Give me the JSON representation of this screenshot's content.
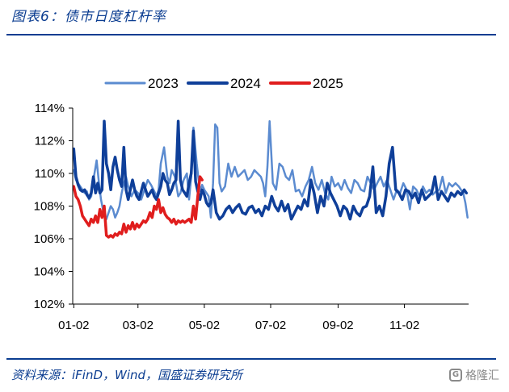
{
  "figure": {
    "title": "图表6：债市日度杠杆率",
    "source": "资料来源：iFinD，Wind，国盛证券研究所",
    "watermark": "格隆汇"
  },
  "chart_data": {
    "type": "line",
    "ylim": [
      102,
      114
    ],
    "xlim": [
      1,
      365
    ],
    "yticks": [
      "102%",
      "104%",
      "106%",
      "108%",
      "110%",
      "112%",
      "114%"
    ],
    "ytick_values": [
      102,
      104,
      106,
      108,
      110,
      112,
      114
    ],
    "xticks": [
      "01-02",
      "03-02",
      "05-02",
      "07-02",
      "09-02",
      "11-02"
    ],
    "xtick_values": [
      2,
      61,
      122,
      183,
      245,
      306
    ],
    "legend_position": "top",
    "grid": false,
    "series": [
      {
        "name": "2023",
        "color": "#5b8bd0",
        "width": 2.5,
        "x": [
          2,
          4,
          6,
          8,
          10,
          12,
          14,
          16,
          18,
          20,
          23,
          25,
          27,
          30,
          32,
          34,
          36,
          38,
          40,
          42,
          44,
          46,
          48,
          50,
          52,
          55,
          58,
          61,
          64,
          67,
          70,
          73,
          76,
          78,
          80,
          82,
          85,
          88,
          90,
          92,
          95,
          98,
          100,
          103,
          106,
          108,
          110,
          112,
          115,
          118,
          120,
          122,
          124,
          126,
          128,
          130,
          132,
          134,
          136,
          138,
          141,
          144,
          147,
          150,
          153,
          156,
          159,
          162,
          165,
          168,
          171,
          174,
          176,
          178,
          180,
          182,
          185,
          188,
          191,
          194,
          197,
          200,
          203,
          206,
          209,
          212,
          215,
          218,
          221,
          224,
          227,
          230,
          233,
          236,
          239,
          242,
          245,
          248,
          251,
          254,
          257,
          260,
          263,
          266,
          269,
          272,
          275,
          278,
          281,
          284,
          287,
          290,
          293,
          296,
          299,
          302,
          305,
          308,
          311,
          314,
          317,
          320,
          323,
          326,
          329,
          332,
          335,
          338,
          341,
          344,
          347,
          350,
          353,
          356,
          358,
          360,
          362,
          364
        ],
        "y": [
          110.2,
          109.6,
          109.4,
          109.2,
          109.0,
          108.8,
          108.9,
          108.4,
          108.6,
          109.6,
          110.8,
          109.5,
          108.4,
          107.4,
          107.2,
          107.6,
          108.0,
          107.8,
          107.3,
          107.6,
          108.0,
          108.8,
          109.4,
          109.8,
          109.2,
          108.6,
          109.0,
          108.8,
          108.4,
          109.0,
          109.6,
          109.3,
          108.9,
          108.6,
          109.0,
          110.6,
          111.6,
          109.8,
          109.4,
          110.2,
          109.8,
          108.6,
          108.8,
          109.6,
          110.0,
          108.4,
          109.8,
          112.8,
          110.6,
          108.9,
          109.3,
          109.0,
          108.8,
          108.6,
          107.3,
          109.4,
          113.0,
          112.8,
          109.4,
          108.9,
          109.2,
          110.6,
          109.8,
          110.4,
          109.8,
          110.0,
          110.2,
          109.6,
          109.8,
          110.2,
          110.0,
          109.8,
          109.4,
          108.6,
          110.4,
          113.2,
          109.4,
          109.0,
          110.6,
          110.4,
          109.8,
          109.6,
          110.2,
          108.9,
          109.0,
          108.6,
          109.2,
          109.6,
          110.4,
          109.4,
          109.0,
          109.6,
          108.8,
          108.4,
          109.8,
          109.2,
          109.4,
          109.0,
          109.6,
          109.1,
          108.8,
          109.6,
          109.4,
          109.0,
          108.9,
          109.8,
          109.4,
          109.0,
          109.4,
          109.8,
          109.2,
          109.6,
          109.0,
          108.4,
          109.0,
          108.8,
          109.4,
          109.0,
          107.8,
          109.2,
          109.0,
          108.6,
          109.2,
          108.8,
          109.0,
          108.7,
          108.9,
          109.0,
          109.8,
          108.8,
          109.4,
          109.2,
          109.4,
          109.2,
          109.0,
          108.8,
          108.2,
          107.3
        ]
      },
      {
        "name": "2024",
        "color": "#0f3f99",
        "width": 3.5,
        "x": [
          2,
          4,
          6,
          8,
          10,
          12,
          14,
          16,
          18,
          20,
          22,
          24,
          26,
          28,
          30,
          32,
          34,
          36,
          38,
          40,
          42,
          44,
          46,
          48,
          50,
          52,
          54,
          56,
          58,
          60,
          62,
          64,
          66,
          68,
          70,
          72,
          74,
          76,
          78,
          80,
          82,
          84,
          86,
          88,
          90,
          92,
          94,
          96,
          98,
          100,
          102,
          104,
          106,
          108,
          110,
          112,
          114,
          116,
          118,
          120,
          122,
          124,
          126,
          128,
          130,
          133,
          136,
          139,
          142,
          145,
          148,
          151,
          154,
          157,
          160,
          163,
          166,
          169,
          172,
          175,
          178,
          181,
          184,
          187,
          190,
          193,
          196,
          199,
          202,
          205,
          208,
          211,
          214,
          217,
          220,
          223,
          226,
          229,
          232,
          235,
          238,
          241,
          244,
          247,
          250,
          253,
          256,
          259,
          262,
          265,
          268,
          271,
          274,
          277,
          280,
          283,
          286,
          289,
          292,
          295,
          298,
          301,
          304,
          307,
          310,
          313,
          316,
          319,
          322,
          325,
          328,
          331,
          334,
          337,
          340,
          343,
          346,
          349,
          352,
          355,
          358,
          361,
          363
        ],
        "y": [
          111.5,
          109.8,
          109.3,
          109.0,
          108.9,
          109.0,
          108.7,
          108.5,
          108.8,
          109.8,
          108.8,
          109.4,
          108.8,
          109.0,
          113.2,
          110.6,
          110.0,
          109.0,
          110.4,
          111.0,
          110.2,
          109.6,
          109.2,
          111.6,
          109.0,
          108.4,
          109.0,
          109.6,
          109.0,
          108.6,
          108.4,
          108.9,
          109.4,
          109.0,
          108.6,
          108.8,
          109.0,
          108.6,
          108.4,
          108.8,
          109.2,
          110.0,
          109.6,
          109.4,
          108.7,
          109.0,
          109.4,
          109.6,
          113.2,
          109.6,
          109.0,
          108.8,
          108.6,
          109.4,
          110.0,
          112.6,
          109.5,
          108.9,
          108.4,
          109.0,
          108.7,
          108.2,
          108.0,
          108.2,
          109.0,
          107.6,
          107.2,
          107.4,
          107.8,
          108.0,
          107.6,
          107.9,
          108.1,
          107.6,
          107.5,
          107.9,
          108.0,
          107.6,
          107.8,
          107.4,
          108.0,
          107.8,
          108.6,
          108.0,
          107.7,
          108.3,
          107.7,
          108.1,
          107.2,
          107.6,
          108.0,
          107.8,
          108.4,
          108.0,
          109.6,
          108.8,
          107.6,
          108.6,
          108.0,
          109.4,
          108.8,
          108.4,
          108.0,
          107.4,
          108.0,
          107.8,
          107.2,
          108.0,
          107.6,
          107.4,
          107.9,
          108.0,
          108.6,
          110.4,
          107.6,
          108.0,
          107.4,
          108.6,
          110.6,
          111.6,
          109.0,
          108.8,
          108.4,
          109.0,
          108.9,
          108.5,
          108.8,
          108.2,
          109.0,
          108.4,
          108.6,
          108.8,
          109.8,
          108.4,
          108.9,
          108.6,
          108.3,
          108.8,
          108.6,
          108.9,
          108.7,
          109.0,
          108.8
        ]
      },
      {
        "name": "2025",
        "color": "#e01d1d",
        "width": 3.5,
        "x": [
          2,
          4,
          6,
          8,
          10,
          12,
          14,
          16,
          18,
          20,
          22,
          24,
          26,
          28,
          30,
          32,
          34,
          36,
          38,
          40,
          42,
          44,
          46,
          48,
          50,
          52,
          54,
          56,
          58,
          60,
          62,
          64,
          66,
          68,
          70,
          72,
          74,
          76,
          78,
          80,
          82,
          84,
          86,
          88,
          90,
          92,
          94,
          96,
          98,
          100,
          102,
          104,
          106,
          108,
          110,
          112,
          114,
          116,
          118,
          120
        ],
        "y": [
          109.2,
          108.6,
          108.4,
          108.0,
          107.4,
          107.2,
          107.0,
          106.8,
          107.2,
          107.0,
          107.4,
          107.0,
          107.8,
          107.3,
          108.0,
          106.2,
          106.1,
          106.2,
          106.1,
          106.3,
          106.2,
          106.4,
          106.3,
          106.9,
          106.4,
          106.8,
          106.6,
          107.0,
          106.6,
          106.9,
          106.7,
          106.9,
          107.1,
          107.0,
          107.2,
          107.6,
          107.3,
          108.0,
          107.8,
          108.4,
          107.6,
          107.9,
          107.5,
          107.3,
          107.2,
          107.0,
          107.2,
          106.9,
          107.1,
          107.0,
          107.1,
          107.0,
          107.1,
          107.2,
          107.0,
          108.0,
          107.2,
          108.6,
          109.8,
          109.6
        ]
      }
    ]
  }
}
